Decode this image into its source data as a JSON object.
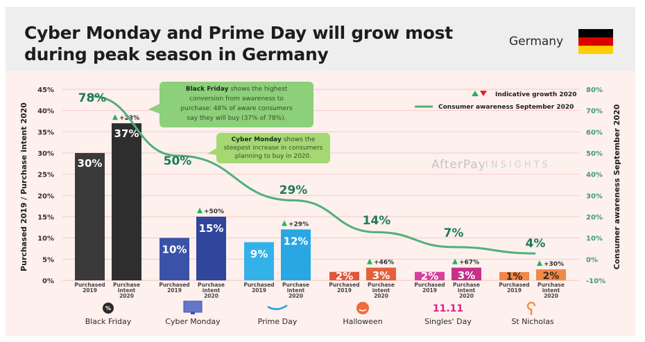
{
  "header": {
    "title_line1": "Cyber Monday and Prime Day will grow most",
    "title_line2": "during peak season in Germany",
    "country": "Germany",
    "flag_colors": [
      "#000000",
      "#dd0000",
      "#ffce00"
    ]
  },
  "watermark": {
    "brand": "AfterPay",
    "suffix": "INSIGHTS"
  },
  "legend": {
    "growth_label": "Indicative growth 2020",
    "awareness_label": "Consumer awareness September 2020"
  },
  "callouts": [
    {
      "bold": "Black Friday",
      "lines": [
        "shows the highest",
        "conversion from awareness to",
        "purchase: 48% of aware consumers",
        "say they will buy (37% of 78%)."
      ]
    },
    {
      "bold": "Cyber Monday",
      "lines": [
        "shows the",
        "steepest increase in consumers",
        "planning to buy in 2020."
      ]
    }
  ],
  "chart_data": {
    "type": "bar",
    "title": "Cyber Monday and Prime Day will grow most during peak season in Germany",
    "ylabel": "Purchased 2019 / Purchase intent 2020",
    "y2label": "Consumer awareness September 2020",
    "ylim": [
      0,
      45
    ],
    "y2lim": [
      -10,
      80
    ],
    "yticks": [
      "0%",
      "5%",
      "10%",
      "15%",
      "20%",
      "25%",
      "30%",
      "35%",
      "40%",
      "45%"
    ],
    "y2ticks": [
      "-10%",
      "0%",
      "10%",
      "20%",
      "30%",
      "40%",
      "50%",
      "60%",
      "70%",
      "80%"
    ],
    "grid": true,
    "legend_position": "top-right",
    "bar_sublabels": [
      "Purchased 2019",
      "Purchase intent 2020"
    ],
    "categories": [
      {
        "name": "Black Friday",
        "icon": "percent-badge-icon",
        "purchased_2019": 30,
        "intent_2020": 37,
        "growth": "+23%",
        "awareness": 78,
        "color_2019": "#3a3a3a",
        "color_2020": "#2e2e2e"
      },
      {
        "name": "Cyber Monday",
        "icon": "monitor-icon",
        "purchased_2019": 10,
        "intent_2020": 15,
        "growth": "+50%",
        "awareness": 50,
        "color_2019": "#3a52a8",
        "color_2020": "#2f469c"
      },
      {
        "name": "Prime Day",
        "icon": "amazon-smile-icon",
        "purchased_2019": 9,
        "intent_2020": 12,
        "growth": "+29%",
        "awareness": 29,
        "color_2019": "#33b2ea",
        "color_2020": "#28a7e3"
      },
      {
        "name": "Halloween",
        "icon": "pumpkin-icon",
        "purchased_2019": 2,
        "intent_2020": 3,
        "growth": "+46%",
        "awareness": 14,
        "color_2019": "#e0573a",
        "color_2020": "#e4603a"
      },
      {
        "name": "Singles' Day",
        "icon": "eleven-eleven-icon",
        "purchased_2019": 2,
        "intent_2020": 3,
        "growth": "+67%",
        "awareness": 7,
        "color_2019": "#d8409a",
        "color_2020": "#c8308a"
      },
      {
        "name": "St Nicholas",
        "icon": "crozier-icon",
        "purchased_2019": 1,
        "intent_2020": 2,
        "growth": "+30%",
        "awareness": 4,
        "color_2019": "#f0884a",
        "color_2020": "#f08a48"
      }
    ],
    "series": [
      {
        "name": "Purchased 2019",
        "values": [
          30,
          10,
          9,
          2,
          2,
          1
        ]
      },
      {
        "name": "Purchase intent 2020",
        "values": [
          37,
          15,
          12,
          3,
          3,
          2
        ]
      },
      {
        "name": "Consumer awareness September 2020",
        "axis": "right",
        "type": "line",
        "values": [
          78,
          50,
          29,
          14,
          7,
          4
        ]
      }
    ],
    "line_color": "#4fb07a",
    "growth_up_color": "#22b35a",
    "growth_down_color": "#e0202a"
  }
}
